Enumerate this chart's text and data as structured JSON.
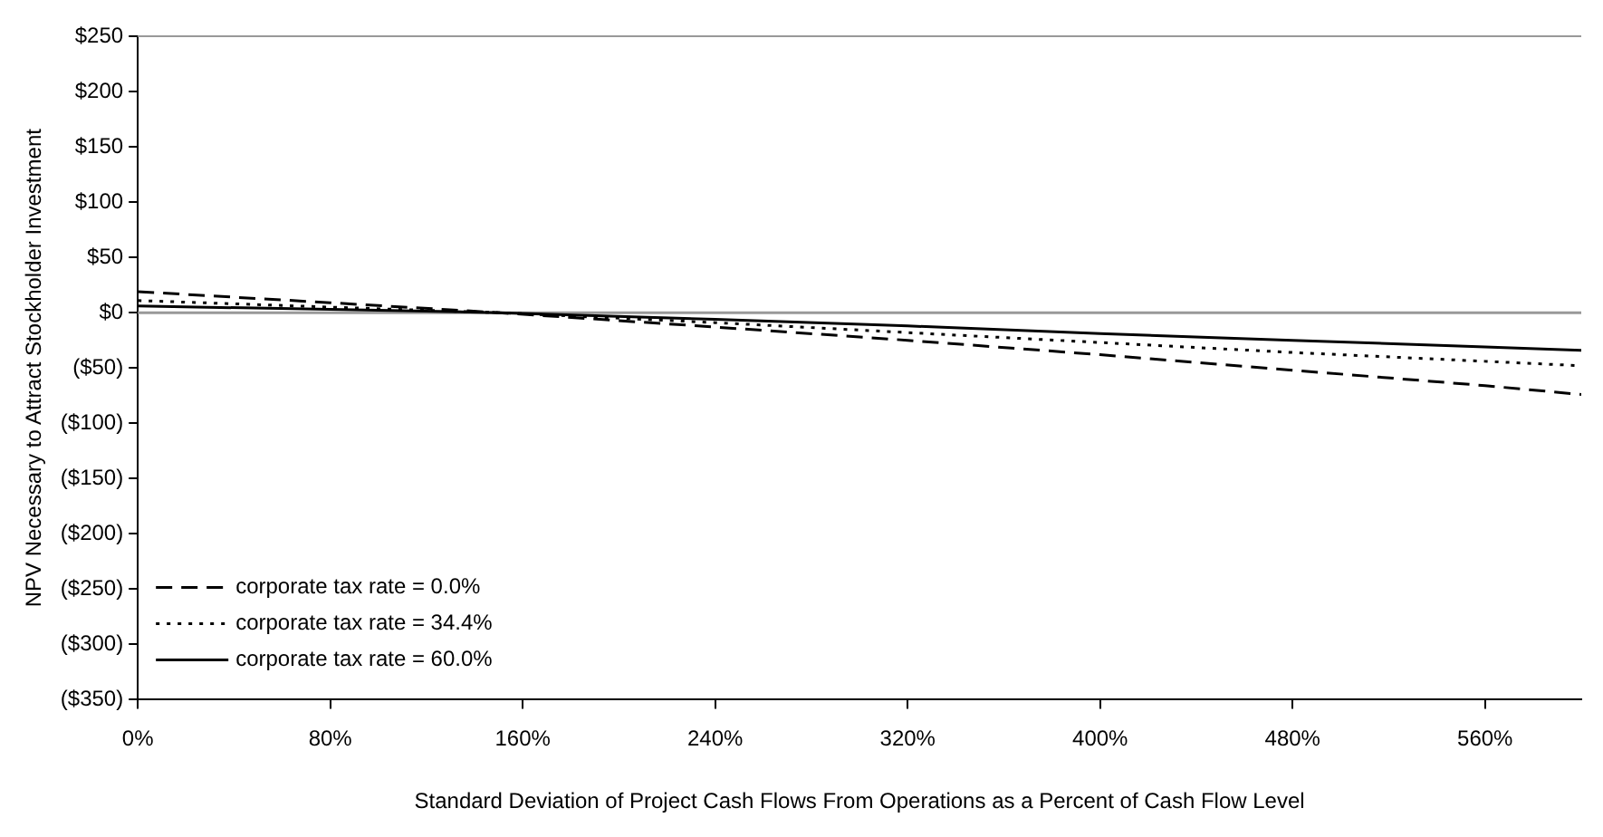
{
  "chart_data": {
    "type": "line",
    "xlabel": "Standard Deviation of Project Cash Flows From Operations as a Percent of Cash Flow Level",
    "ylabel": "NPV Necessary to Attract Stockholder Investment",
    "x": [
      0,
      80,
      150,
      240,
      320,
      400,
      480,
      560,
      600
    ],
    "series": [
      {
        "name": "corporate tax rate = 0.0%",
        "color": "#000000",
        "line_style": "dashed",
        "values": [
          19,
          9,
          0,
          -13,
          -25,
          -38,
          -52,
          -66,
          -74
        ]
      },
      {
        "name": "corporate tax rate = 34.4%",
        "color": "#000000",
        "line_style": "dotted",
        "values": [
          11,
          5,
          0,
          -9,
          -18,
          -27,
          -36,
          -44,
          -48
        ]
      },
      {
        "name": "corporate tax rate = 60.0%",
        "color": "#000000",
        "line_style": "solid",
        "values": [
          6,
          3,
          0,
          -6,
          -12,
          -19,
          -25,
          -31,
          -34
        ]
      }
    ],
    "xlim": [
      0,
      600
    ],
    "xticks": [
      {
        "value": 0,
        "label": "0%"
      },
      {
        "value": 80,
        "label": "80%"
      },
      {
        "value": 160,
        "label": "160%"
      },
      {
        "value": 240,
        "label": "240%"
      },
      {
        "value": 320,
        "label": "320%"
      },
      {
        "value": 400,
        "label": "400%"
      },
      {
        "value": 480,
        "label": "480%"
      },
      {
        "value": 560,
        "label": "560%"
      }
    ],
    "ylim": [
      -350,
      250
    ],
    "yticks": [
      {
        "value": -350,
        "label": "($350)"
      },
      {
        "value": -300,
        "label": "($300)"
      },
      {
        "value": -250,
        "label": "($250)"
      },
      {
        "value": -200,
        "label": "($200)"
      },
      {
        "value": -150,
        "label": "($150)"
      },
      {
        "value": -100,
        "label": "($100)"
      },
      {
        "value": -50,
        "label": "($50)"
      },
      {
        "value": 0,
        "label": "$0"
      },
      {
        "value": 50,
        "label": "$50"
      },
      {
        "value": 100,
        "label": "$100"
      },
      {
        "value": 150,
        "label": "$150"
      },
      {
        "value": 200,
        "label": "$200"
      },
      {
        "value": 250,
        "label": "$250"
      }
    ],
    "ref_lines": [
      {
        "axis": "y",
        "value": 0,
        "color": "#999999"
      }
    ],
    "grid": false,
    "legend": "bottom left",
    "marker": "none"
  }
}
